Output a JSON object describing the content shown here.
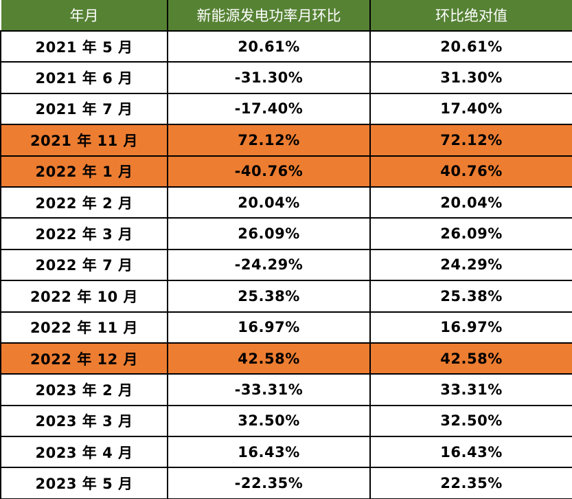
{
  "table": {
    "columns": [
      {
        "label": "年月"
      },
      {
        "label": "新能源发电功率月环比"
      },
      {
        "label": "环比绝对值"
      }
    ],
    "rows": [
      {
        "month": "2021 年 5 月",
        "mom": "20.61%",
        "abs": "20.61%",
        "highlighted": false
      },
      {
        "month": "2021 年 6 月",
        "mom": "-31.30%",
        "abs": "31.30%",
        "highlighted": false
      },
      {
        "month": "2021 年 7 月",
        "mom": "-17.40%",
        "abs": "17.40%",
        "highlighted": false
      },
      {
        "month": "2021 年 11 月",
        "mom": "72.12%",
        "abs": "72.12%",
        "highlighted": true
      },
      {
        "month": "2022 年 1 月",
        "mom": "-40.76%",
        "abs": "40.76%",
        "highlighted": true
      },
      {
        "month": "2022 年 2 月",
        "mom": "20.04%",
        "abs": "20.04%",
        "highlighted": false
      },
      {
        "month": "2022 年 3 月",
        "mom": "26.09%",
        "abs": "26.09%",
        "highlighted": false
      },
      {
        "month": "2022 年 7 月",
        "mom": "-24.29%",
        "abs": "24.29%",
        "highlighted": false
      },
      {
        "month": "2022 年 10 月",
        "mom": "25.38%",
        "abs": "25.38%",
        "highlighted": false
      },
      {
        "month": "2022 年 11 月",
        "mom": "16.97%",
        "abs": "16.97%",
        "highlighted": false
      },
      {
        "month": "2022 年 12 月",
        "mom": "42.58%",
        "abs": "42.58%",
        "highlighted": true
      },
      {
        "month": "2023 年 2 月",
        "mom": "-33.31%",
        "abs": "33.31%",
        "highlighted": false
      },
      {
        "month": "2023 年 3 月",
        "mom": "32.50%",
        "abs": "32.50%",
        "highlighted": false
      },
      {
        "month": "2023 年 4 月",
        "mom": "16.43%",
        "abs": "16.43%",
        "highlighted": false
      },
      {
        "month": "2023 年 5 月",
        "mom": "-22.35%",
        "abs": "22.35%",
        "highlighted": false
      }
    ]
  },
  "colors": {
    "header_bg": "#568234",
    "header_text": "#FFFFFF",
    "highlight_bg": "#ED7D31",
    "body_bg": "#FFFFFF",
    "body_text": "#000000",
    "border": "#000000"
  }
}
